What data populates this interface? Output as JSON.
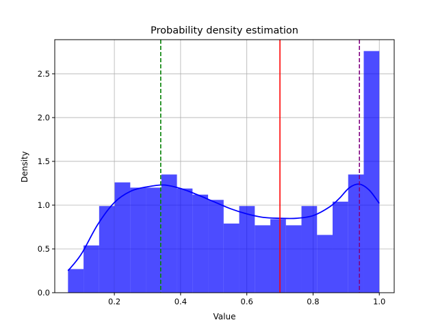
{
  "chart_data": {
    "type": "bar",
    "title": "Probability density estimation",
    "xlabel": "Value",
    "ylabel": "Density",
    "xlim": [
      0.02,
      1.045
    ],
    "ylim": [
      0,
      2.89
    ],
    "xticks": [
      0.2,
      0.4,
      0.6,
      0.8,
      1.0
    ],
    "xtick_labels": [
      "0.2",
      "0.4",
      "0.6",
      "0.8",
      "1.0"
    ],
    "yticks": [
      0.0,
      0.5,
      1.0,
      1.5,
      2.0,
      2.5
    ],
    "ytick_labels": [
      "0.0",
      "0.5",
      "1.0",
      "1.5",
      "2.0",
      "2.5"
    ],
    "grid": true,
    "histogram": {
      "color": "#0000ff",
      "alpha": 0.7,
      "bin_edges": [
        0.06,
        0.107,
        0.154,
        0.201,
        0.248,
        0.295,
        0.342,
        0.389,
        0.436,
        0.483,
        0.53,
        0.577,
        0.624,
        0.671,
        0.718,
        0.765,
        0.812,
        0.859,
        0.906,
        0.953,
        1.0
      ],
      "values": [
        0.27,
        0.54,
        0.99,
        1.26,
        1.2,
        1.2,
        1.35,
        1.19,
        1.12,
        1.06,
        0.79,
        0.99,
        0.77,
        0.84,
        0.77,
        0.99,
        0.66,
        1.04,
        1.35,
        2.76
      ]
    },
    "density_curve": {
      "color": "#0000ff",
      "x": [
        0.06,
        0.1,
        0.15,
        0.2,
        0.25,
        0.3,
        0.35,
        0.4,
        0.45,
        0.5,
        0.55,
        0.6,
        0.65,
        0.7,
        0.75,
        0.8,
        0.85,
        0.88,
        0.91,
        0.94,
        0.97,
        1.0
      ],
      "y": [
        0.25,
        0.44,
        0.78,
        1.03,
        1.16,
        1.21,
        1.23,
        1.19,
        1.12,
        1.04,
        0.96,
        0.9,
        0.86,
        0.85,
        0.85,
        0.88,
        0.98,
        1.08,
        1.2,
        1.24,
        1.17,
        1.02
      ]
    },
    "reference_lines": [
      {
        "x": 0.34,
        "color": "#008000",
        "style": "dashed"
      },
      {
        "x": 0.7,
        "color": "#ff0000",
        "style": "solid"
      },
      {
        "x": 0.94,
        "color": "#800080",
        "style": "dashed"
      }
    ]
  }
}
